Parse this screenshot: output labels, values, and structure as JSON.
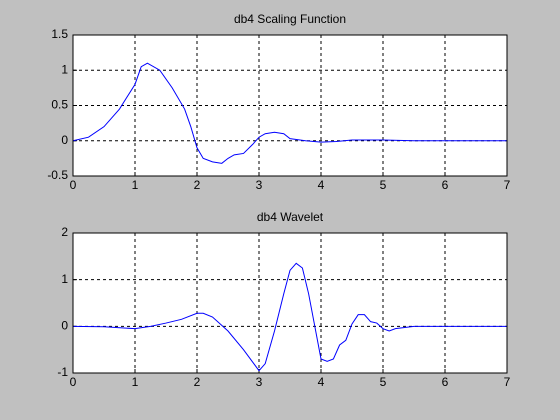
{
  "chart_data": [
    {
      "type": "line",
      "title": "db4 Scaling Function",
      "x": [
        0,
        0.25,
        0.5,
        0.75,
        1.0,
        1.1,
        1.2,
        1.4,
        1.6,
        1.8,
        1.9,
        2.0,
        2.1,
        2.25,
        2.4,
        2.5,
        2.6,
        2.75,
        2.9,
        3.0,
        3.1,
        3.25,
        3.4,
        3.5,
        3.75,
        4.0,
        4.25,
        4.5,
        5.0,
        5.5,
        6.0,
        7.0
      ],
      "values": [
        0,
        0.05,
        0.2,
        0.45,
        0.8,
        1.05,
        1.1,
        1.0,
        0.75,
        0.45,
        0.2,
        -0.1,
        -0.25,
        -0.3,
        -0.32,
        -0.25,
        -0.2,
        -0.18,
        -0.05,
        0.05,
        0.1,
        0.12,
        0.1,
        0.03,
        0.0,
        -0.02,
        -0.01,
        0.01,
        0.01,
        0.0,
        0.0,
        0
      ],
      "color": "#0000ff",
      "xlim": [
        0,
        7
      ],
      "xticks": [
        0,
        1,
        2,
        3,
        4,
        5,
        6,
        7
      ],
      "ylim": [
        -0.5,
        1.5
      ],
      "yticks": [
        -0.5,
        0,
        0.5,
        1,
        1.5
      ],
      "grid": true
    },
    {
      "type": "line",
      "title": "db4 Wavelet",
      "x": [
        0,
        0.5,
        1.0,
        1.25,
        1.5,
        1.75,
        2.0,
        2.1,
        2.25,
        2.5,
        2.75,
        3.0,
        3.1,
        3.25,
        3.4,
        3.5,
        3.6,
        3.7,
        3.8,
        3.9,
        4.0,
        4.1,
        4.2,
        4.3,
        4.4,
        4.5,
        4.6,
        4.7,
        4.8,
        4.9,
        5.0,
        5.1,
        5.2,
        5.5,
        6.0,
        7.0
      ],
      "values": [
        0,
        -0.01,
        -0.05,
        0.0,
        0.07,
        0.15,
        0.28,
        0.28,
        0.2,
        -0.1,
        -0.5,
        -0.95,
        -0.8,
        -0.1,
        0.7,
        1.2,
        1.35,
        1.25,
        0.7,
        0.0,
        -0.7,
        -0.75,
        -0.7,
        -0.4,
        -0.3,
        0.05,
        0.25,
        0.25,
        0.1,
        0.07,
        -0.05,
        -0.1,
        -0.05,
        0,
        0,
        0
      ],
      "color": "#0000ff",
      "xlim": [
        0,
        7
      ],
      "xticks": [
        0,
        1,
        2,
        3,
        4,
        5,
        6,
        7
      ],
      "ylim": [
        -1,
        2
      ],
      "yticks": [
        -1,
        0,
        1,
        2
      ],
      "grid": true
    }
  ]
}
